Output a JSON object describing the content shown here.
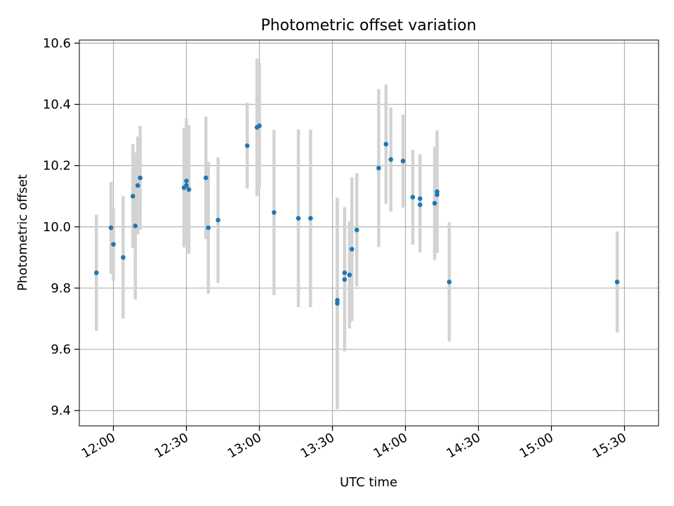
{
  "chart_data": {
    "type": "scatter",
    "title": "Photometric offset variation",
    "xlabel": "UTC time",
    "ylabel": "Photometric offset",
    "x_unit": "UTC HH:MM",
    "xlim": [
      "11:46",
      "15:44"
    ],
    "ylim": [
      9.35,
      10.61
    ],
    "xticks": [
      "12:00",
      "12:30",
      "13:00",
      "13:30",
      "14:00",
      "14:30",
      "15:00",
      "15:30"
    ],
    "yticks": [
      "9.4",
      "9.6",
      "9.8",
      "10.0",
      "10.2",
      "10.4",
      "10.6"
    ],
    "grid": true,
    "point_color": "#1f77b4",
    "errorbar_color": "#d3d3d3",
    "points": [
      {
        "x": "11:53",
        "y": 9.85,
        "err": 0.19
      },
      {
        "x": "11:59",
        "y": 9.997,
        "err": 0.15
      },
      {
        "x": "12:00",
        "y": 9.943,
        "err": 0.12
      },
      {
        "x": "12:04",
        "y": 9.9,
        "err": 0.2
      },
      {
        "x": "12:08",
        "y": 10.1,
        "err": 0.17
      },
      {
        "x": "12:09",
        "y": 10.003,
        "err": 0.24
      },
      {
        "x": "12:10",
        "y": 10.135,
        "err": 0.16
      },
      {
        "x": "12:11",
        "y": 10.16,
        "err": 0.17
      },
      {
        "x": "12:29",
        "y": 10.128,
        "err": 0.195
      },
      {
        "x": "12:30",
        "y": 10.135,
        "err": 0.19
      },
      {
        "x": "12:30",
        "y": 10.15,
        "err": 0.205
      },
      {
        "x": "12:31",
        "y": 10.122,
        "err": 0.21
      },
      {
        "x": "12:38",
        "y": 10.16,
        "err": 0.2
      },
      {
        "x": "12:39",
        "y": 9.997,
        "err": 0.215
      },
      {
        "x": "12:43",
        "y": 10.022,
        "err": 0.205
      },
      {
        "x": "12:55",
        "y": 10.265,
        "err": 0.14
      },
      {
        "x": "12:59",
        "y": 10.325,
        "err": 0.225
      },
      {
        "x": "13:00",
        "y": 10.33,
        "err": 0.205
      },
      {
        "x": "13:06",
        "y": 10.047,
        "err": 0.27
      },
      {
        "x": "13:16",
        "y": 10.028,
        "err": 0.29
      },
      {
        "x": "13:21",
        "y": 10.028,
        "err": 0.29
      },
      {
        "x": "13:32",
        "y": 9.75,
        "err": 0.345
      },
      {
        "x": "13:32",
        "y": 9.76,
        "err": 0.335
      },
      {
        "x": "13:35",
        "y": 9.828,
        "err": 0.235
      },
      {
        "x": "13:35",
        "y": 9.85,
        "err": 0.215
      },
      {
        "x": "13:37",
        "y": 9.843,
        "err": 0.175
      },
      {
        "x": "13:38",
        "y": 9.927,
        "err": 0.235
      },
      {
        "x": "13:40",
        "y": 9.99,
        "err": 0.185
      },
      {
        "x": "13:49",
        "y": 10.192,
        "err": 0.258
      },
      {
        "x": "13:52",
        "y": 10.27,
        "err": 0.195
      },
      {
        "x": "13:54",
        "y": 10.22,
        "err": 0.17
      },
      {
        "x": "13:59",
        "y": 10.215,
        "err": 0.152
      },
      {
        "x": "14:03",
        "y": 10.097,
        "err": 0.155
      },
      {
        "x": "14:06",
        "y": 10.092,
        "err": 0.145
      },
      {
        "x": "14:06",
        "y": 10.072,
        "err": 0.155
      },
      {
        "x": "14:12",
        "y": 10.077,
        "err": 0.185
      },
      {
        "x": "14:13",
        "y": 10.115,
        "err": 0.2
      },
      {
        "x": "14:13",
        "y": 10.105,
        "err": 0.185
      },
      {
        "x": "14:18",
        "y": 9.82,
        "err": 0.195
      },
      {
        "x": "15:27",
        "y": 9.82,
        "err": 0.165
      }
    ]
  }
}
